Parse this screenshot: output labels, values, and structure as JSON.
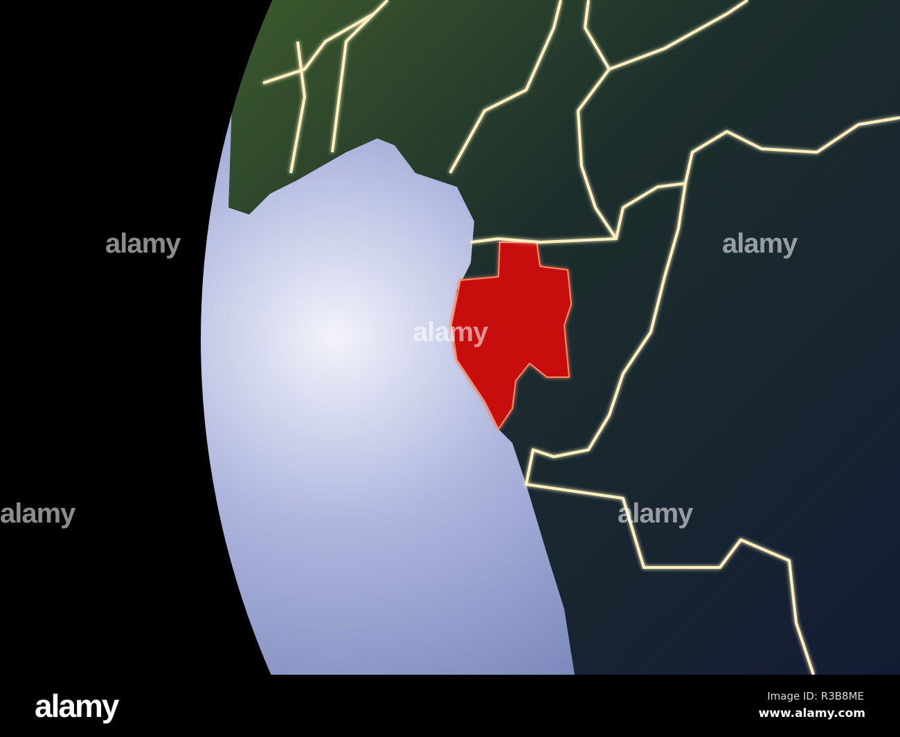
{
  "watermark": "alamy",
  "footer": {
    "logo": "alamy",
    "image_id": "Image ID: R3B8ME",
    "site": "www.alamy.com"
  },
  "colors": {
    "highlight_country": "#d01010",
    "border_glow": "#fff2c0",
    "ocean": "#a9b3dc",
    "land": "#1a2a3a"
  }
}
